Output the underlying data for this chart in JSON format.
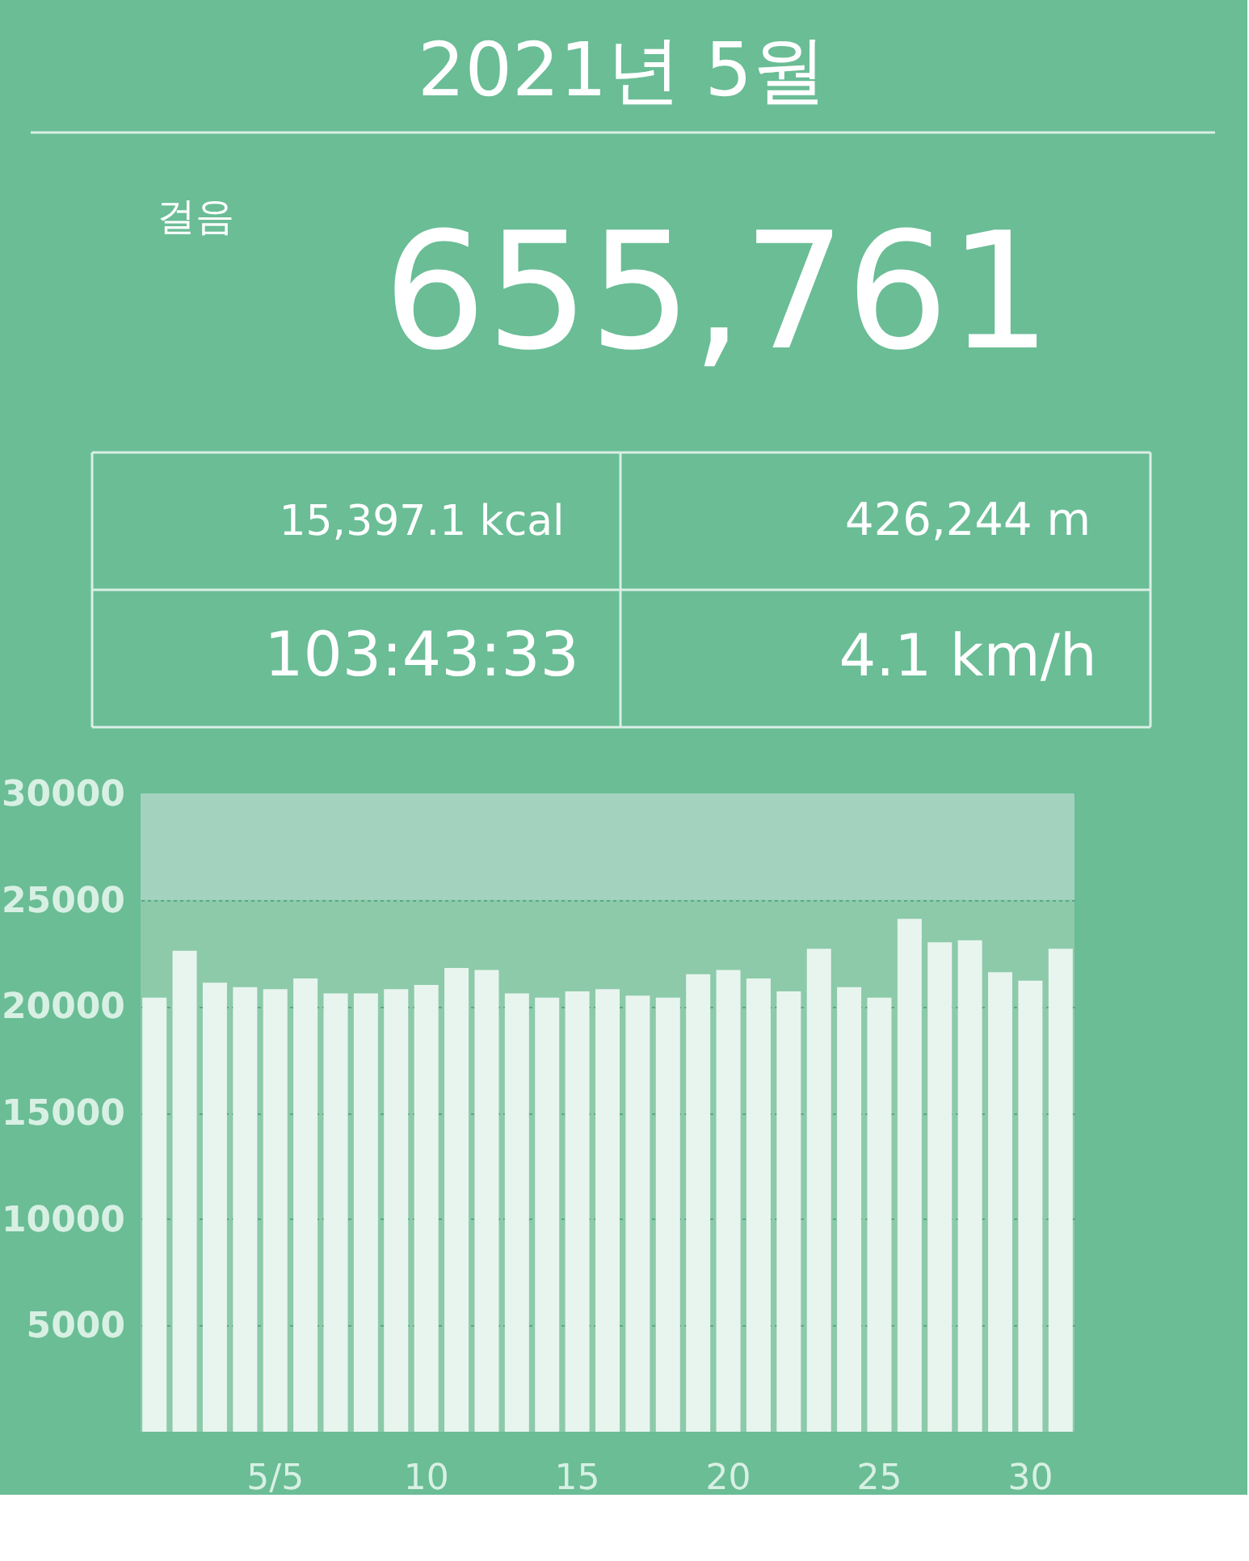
{
  "chart_data": {
    "type": "bar",
    "title": "2021년 5월",
    "annotations": [
      "걸음",
      "655,761",
      "15,397.1 kcal",
      "426,244 m",
      "103:43:33",
      "4.1 km/h"
    ],
    "categories": [
      null,
      null,
      null,
      null,
      "5/5",
      null,
      null,
      null,
      null,
      "10",
      null,
      null,
      null,
      null,
      "15",
      null,
      null,
      null,
      null,
      "20",
      null,
      null,
      null,
      null,
      "25",
      null,
      null,
      null,
      null,
      "30",
      null
    ],
    "values": [
      20400,
      22600,
      21100,
      20900,
      20800,
      21300,
      20600,
      20600,
      20800,
      21000,
      21800,
      21700,
      20600,
      20400,
      20700,
      20800,
      20500,
      20400,
      21500,
      21700,
      21300,
      20700,
      22700,
      20900,
      20400,
      24100,
      23000,
      23100,
      21600,
      21200,
      22700
    ],
    "color": "#e8f5ee",
    "ylim": [
      0,
      30000
    ],
    "yticks": [
      5000,
      10000,
      15000,
      20000,
      25000,
      30000
    ],
    "grid": "y",
    "bands": [
      {
        "axis": "y",
        "from": 25000,
        "to": 30000,
        "color": "#a3d3bf"
      }
    ]
  }
}
